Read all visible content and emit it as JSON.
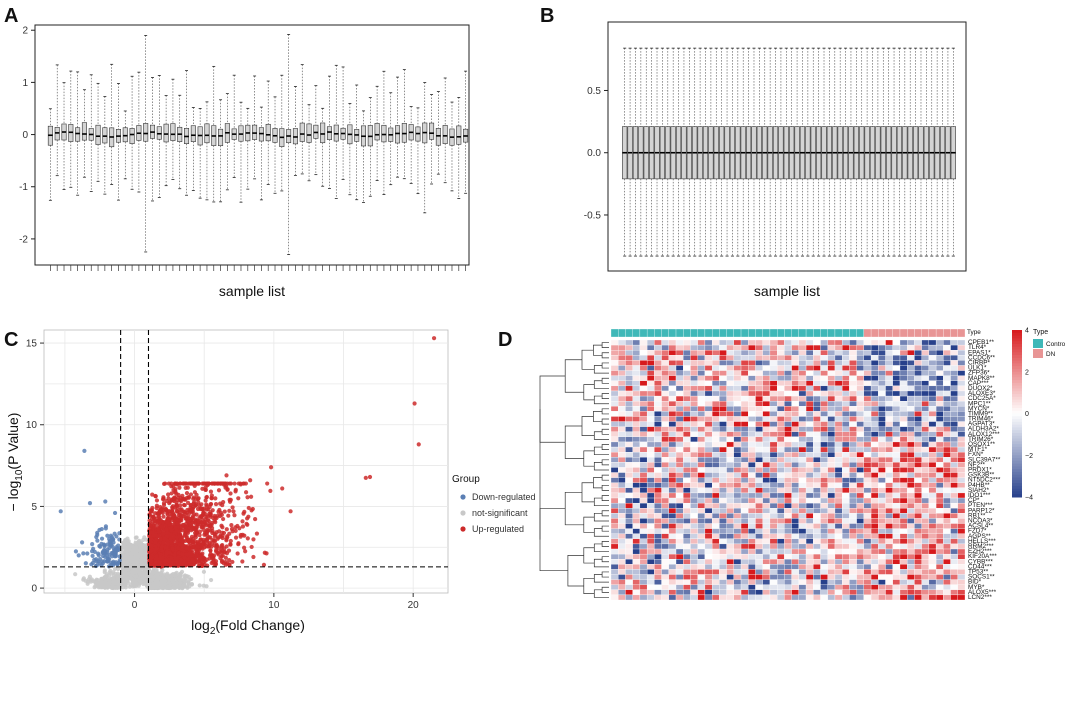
{
  "chart_data": [
    {
      "panel": "A",
      "type": "box",
      "xlabel": "sample list",
      "ylabel": "",
      "ylim": [
        -2.5,
        2.1
      ],
      "yticks": [
        -2,
        -1,
        0,
        1,
        2
      ],
      "n_samples": 62,
      "summary": "Per-sample expression distributions before normalization; medians near 0, IQR about -0.15 to 0.15, whiskers roughly -1.0 to 1.2, a few extreme whiskers reaching -2.3 and 1.9"
    },
    {
      "panel": "B",
      "type": "box",
      "xlabel": "sample list",
      "ylabel": "",
      "ylim": [
        -0.95,
        1.05
      ],
      "yticks": [
        -0.5,
        0.0,
        0.5
      ],
      "n_samples": 62,
      "box": {
        "q1": -0.21,
        "median": 0.0,
        "q3": 0.21,
        "whisker_low": -0.83,
        "whisker_high": 0.84
      },
      "summary": "Per-sample distributions after normalization; all boxes identical"
    },
    {
      "panel": "C",
      "type": "scatter",
      "xlabel_base": "log",
      "xlabel_sub": "2",
      "xlabel_rest": "(Fold Change)",
      "ylabel_prefix": "− log",
      "ylabel_sub": "10",
      "ylabel_rest": "(P Value)",
      "xlim": [
        -6.5,
        22.5
      ],
      "ylim": [
        -0.3,
        15.8
      ],
      "xticks": [
        0,
        10,
        20
      ],
      "yticks": [
        0,
        5,
        10,
        15
      ],
      "thresholds": {
        "logfc": [
          -1,
          1
        ],
        "neglog10p": 1.3
      },
      "legend_title": "Group",
      "groups": [
        {
          "name": "Down-regulated",
          "color": "#5b7fb4"
        },
        {
          "name": "not-significant",
          "color": "#c8c8c8"
        },
        {
          "name": "Up-regulated",
          "color": "#cc2a2a"
        }
      ],
      "highlight_points": [
        {
          "x": 21.5,
          "y": 15.3,
          "group": "Up-regulated"
        },
        {
          "x": 20.1,
          "y": 11.3,
          "group": "Up-regulated"
        },
        {
          "x": 20.4,
          "y": 8.8,
          "group": "Up-regulated"
        },
        {
          "x": 16.9,
          "y": 6.8,
          "group": "Up-regulated"
        },
        {
          "x": 16.6,
          "y": 6.75,
          "group": "Up-regulated"
        },
        {
          "x": 9.8,
          "y": 7.4,
          "group": "Up-regulated"
        },
        {
          "x": 10.6,
          "y": 6.1,
          "group": "Up-regulated"
        },
        {
          "x": 8.3,
          "y": 6.6,
          "group": "Up-regulated"
        },
        {
          "x": 11.2,
          "y": 4.7,
          "group": "Up-regulated"
        },
        {
          "x": 6.6,
          "y": 6.9,
          "group": "Up-regulated"
        },
        {
          "x": -3.6,
          "y": 8.4,
          "group": "Down-regulated"
        },
        {
          "x": -5.3,
          "y": 4.7,
          "group": "Down-regulated"
        },
        {
          "x": -3.2,
          "y": 5.2,
          "group": "Down-regulated"
        },
        {
          "x": -2.1,
          "y": 5.3,
          "group": "Down-regulated"
        },
        {
          "x": -1.4,
          "y": 4.6,
          "group": "Down-regulated"
        }
      ]
    },
    {
      "panel": "D",
      "type": "heatmap",
      "annotation_label": "Type",
      "legend_title": "Type",
      "groups": [
        {
          "name": "Control",
          "color": "#3fb8b8",
          "n": 35
        },
        {
          "name": "DN",
          "color": "#e89595",
          "n": 14
        }
      ],
      "color_scale": {
        "min": -4,
        "max": 4,
        "ticks": [
          4,
          2,
          0,
          -2,
          -4
        ],
        "low": "#27408b",
        "mid": "#ffffff",
        "high": "#d7191c"
      },
      "genes": [
        "CPEB1**",
        "TLR4*",
        "EPAS1*",
        "CCDC6**",
        "CIRBP*",
        "ULK1*",
        "ZFP36*",
        "MAPK8**",
        "CAP***",
        "DUOX2*",
        "ALOXE3*",
        "CDC25A*",
        "MPC1**",
        "MYCN*",
        "TIMM9**",
        "TRIM46*",
        "AGPAT3*",
        "ALDH3A2*",
        "ALOX12***",
        "TRIM26*",
        "QSOX1**",
        "MTF1*",
        "FXN*",
        "SLC39A7**",
        "NF2**",
        "PRDX1*",
        "GSK3B**",
        "NT5DC2***",
        "P4HB**",
        "SIAH2*",
        "IDO1***",
        "CP*",
        "PTEN***",
        "PARP12*",
        "RB1**",
        "NCOA3*",
        "ACSL4**",
        "FZD7*",
        "AGPS**",
        "HELLS***",
        "RRM2***",
        "EZH2***",
        "KIF20A***",
        "CYBB***",
        "CD44***",
        "TP53**",
        "SOCS1**",
        "BID*",
        "MYB*",
        "ALOX5***",
        "LCN2***"
      ]
    }
  ]
}
